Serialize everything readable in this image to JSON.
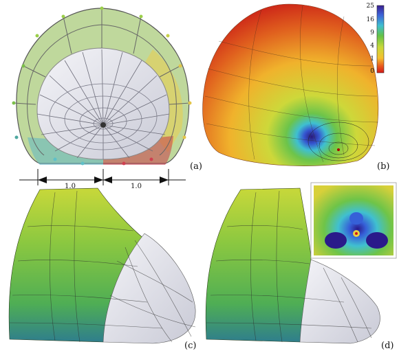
{
  "panels": {
    "a": {
      "label": "(a)"
    },
    "b": {
      "label": "(b)"
    },
    "c": {
      "label": "(c)"
    },
    "d": {
      "label": "(d)"
    }
  },
  "dimension": {
    "left_label": "1.0",
    "right_label": "1.0"
  },
  "colorbar": {
    "ticks": [
      "25",
      "16",
      "9",
      "4",
      "1",
      "0"
    ],
    "colors": [
      "#3a1f8f",
      "#3d62d8",
      "#3fbfd0",
      "#63c246",
      "#c8d83a",
      "#f4c02e",
      "#e85a1c",
      "#d41818"
    ]
  }
}
